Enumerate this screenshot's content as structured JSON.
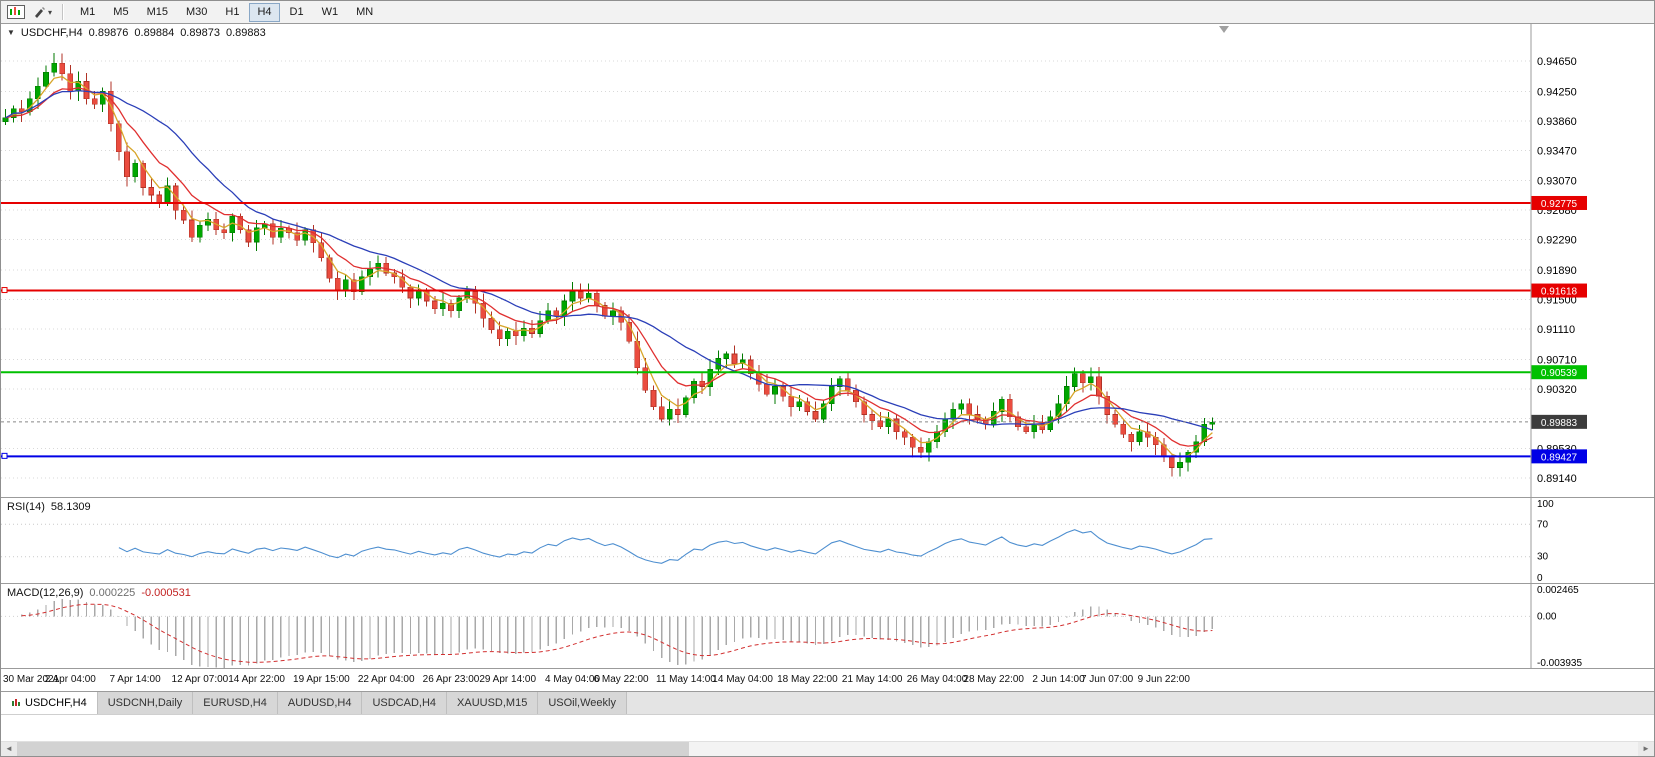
{
  "toolbar": {
    "timeframes": [
      "M1",
      "M5",
      "M15",
      "M30",
      "H1",
      "H4",
      "D1",
      "W1",
      "MN"
    ],
    "active_timeframe": "H4",
    "dropdown_caret": "▾"
  },
  "tabs": {
    "items": [
      "USDCHF,H4",
      "USDCNH,Daily",
      "EURUSD,H4",
      "AUDUSD,H4",
      "USDCAD,H4",
      "XAUUSD,M15",
      "USOil,Weekly"
    ],
    "active": "USDCHF,H4"
  },
  "scrollbar": {
    "left_arrow": "◄",
    "right_arrow": "►"
  },
  "chart_data": {
    "type": "candlestick",
    "header": {
      "marker": "▼",
      "symbol_timeframe": "USDCHF,H4",
      "open": "0.89876",
      "high": "0.89884",
      "low": "0.89873",
      "close": "0.89883"
    },
    "price_range": {
      "min": 0.8889,
      "max": 0.9514
    },
    "price_axis": [
      {
        "label": "0.94650",
        "value": 0.9465
      },
      {
        "label": "0.94250",
        "value": 0.9425
      },
      {
        "label": "0.93860",
        "value": 0.9386
      },
      {
        "label": "0.93470",
        "value": 0.9347
      },
      {
        "label": "0.93070",
        "value": 0.9307
      },
      {
        "label": "0.92680",
        "value": 0.9268
      },
      {
        "label": "0.92290",
        "value": 0.9229
      },
      {
        "label": "0.91890",
        "value": 0.9189
      },
      {
        "label": "0.91500",
        "value": 0.915
      },
      {
        "label": "0.91110",
        "value": 0.9111
      },
      {
        "label": "0.90710",
        "value": 0.9071
      },
      {
        "label": "0.90320",
        "value": 0.9032
      },
      {
        "label": "0.89930",
        "value": 0.8993
      },
      {
        "label": "0.89530",
        "value": 0.8953
      },
      {
        "label": "0.89140",
        "value": 0.8914
      }
    ],
    "time_axis": [
      {
        "label": "30 Mar 2021",
        "index": 0
      },
      {
        "label": "2 Apr 04:00",
        "index": 8
      },
      {
        "label": "7 Apr 14:00",
        "index": 16
      },
      {
        "label": "12 Apr 07:00",
        "index": 24
      },
      {
        "label": "14 Apr 22:00",
        "index": 31
      },
      {
        "label": "19 Apr 15:00",
        "index": 39
      },
      {
        "label": "22 Apr 04:00",
        "index": 47
      },
      {
        "label": "26 Apr 23:00",
        "index": 55
      },
      {
        "label": "29 Apr 14:00",
        "index": 62
      },
      {
        "label": "4 May 04:00",
        "index": 70
      },
      {
        "label": "6 May 22:00",
        "index": 76
      },
      {
        "label": "11 May 14:00",
        "index": 84
      },
      {
        "label": "14 May 04:00",
        "index": 91
      },
      {
        "label": "18 May 22:00",
        "index": 99
      },
      {
        "label": "21 May 14:00",
        "index": 107
      },
      {
        "label": "26 May 04:00",
        "index": 115
      },
      {
        "label": "28 May 22:00",
        "index": 122
      },
      {
        "label": "2 Jun 14:00",
        "index": 130
      },
      {
        "label": "7 Jun 07:00",
        "index": 136
      },
      {
        "label": "9 Jun 22:00",
        "index": 143
      }
    ],
    "candles": {
      "first_open": 0.9385,
      "closes": [
        0.939,
        0.9402,
        0.9398,
        0.9415,
        0.9432,
        0.945,
        0.9462,
        0.9448,
        0.9425,
        0.9438,
        0.9415,
        0.9408,
        0.9425,
        0.9382,
        0.9345,
        0.9312,
        0.933,
        0.9298,
        0.9288,
        0.9278,
        0.93,
        0.9268,
        0.9255,
        0.9232,
        0.9248,
        0.9256,
        0.9242,
        0.9238,
        0.926,
        0.9242,
        0.9226,
        0.9245,
        0.925,
        0.9232,
        0.9244,
        0.9238,
        0.9228,
        0.9242,
        0.9225,
        0.9205,
        0.9178,
        0.9162,
        0.9176,
        0.916,
        0.918,
        0.919,
        0.9198,
        0.9185,
        0.918,
        0.9166,
        0.9152,
        0.9162,
        0.9148,
        0.9138,
        0.9145,
        0.9135,
        0.9152,
        0.916,
        0.9145,
        0.9125,
        0.911,
        0.9098,
        0.9108,
        0.9102,
        0.9112,
        0.9105,
        0.9122,
        0.9135,
        0.9128,
        0.9148,
        0.916,
        0.9152,
        0.9158,
        0.9142,
        0.9128,
        0.9135,
        0.912,
        0.9095,
        0.906,
        0.903,
        0.9008,
        0.8992,
        0.9005,
        0.8998,
        0.902,
        0.9042,
        0.9035,
        0.9058,
        0.9072,
        0.9078,
        0.9065,
        0.907,
        0.9052,
        0.9038,
        0.9025,
        0.9035,
        0.9022,
        0.9008,
        0.9015,
        0.9002,
        0.8992,
        0.9012,
        0.9035,
        0.9045,
        0.903,
        0.9015,
        0.8998,
        0.899,
        0.8982,
        0.8992,
        0.8975,
        0.8968,
        0.8955,
        0.8948,
        0.8962,
        0.8975,
        0.8992,
        0.9005,
        0.9012,
        0.8998,
        0.8992,
        0.8985,
        0.9002,
        0.9018,
        0.8995,
        0.8982,
        0.8975,
        0.8985,
        0.8978,
        0.8995,
        0.9012,
        0.9035,
        0.9052,
        0.904,
        0.9048,
        0.9022,
        0.8998,
        0.8985,
        0.8972,
        0.8962,
        0.8975,
        0.8968,
        0.8958,
        0.8942,
        0.8928,
        0.8935,
        0.8948,
        0.8962,
        0.8985,
        0.8988
      ]
    },
    "moving_averages": [
      {
        "name": "fast",
        "type": "ema",
        "period": 4,
        "color": "#D8A62A"
      },
      {
        "name": "medium",
        "type": "ema",
        "period": 9,
        "color": "#E03030"
      },
      {
        "name": "slow",
        "type": "sma",
        "period": 17,
        "color": "#2B3FB8"
      }
    ],
    "hlines": [
      {
        "label": "0.92775",
        "value": 0.92775,
        "color": "#E60000",
        "handles": false
      },
      {
        "label": "0.91618",
        "value": 0.91618,
        "color": "#E60000",
        "handles": true
      },
      {
        "label": "0.90539",
        "value": 0.90539,
        "color": "#00C000",
        "handles": false
      },
      {
        "label": "0.89427",
        "value": 0.89427,
        "color": "#0000E6",
        "handles": true
      }
    ],
    "current_price": {
      "label": "0.89883",
      "value": 0.89883,
      "tag_color": "#3C3C3C"
    },
    "colors": {
      "background": "#FFFFFF",
      "grid": "#D9D9D9",
      "bull": "#00A600",
      "bull_dark": "#007A00",
      "bear": "#EA4C3F",
      "bear_dark": "#B03226",
      "axis_text": "#000000",
      "panel_border": "#9B9B9B"
    },
    "indicators": {
      "rsi": {
        "title": "RSI(14)",
        "value": "58.1309",
        "period": 14,
        "color": "#4E8FD0",
        "levels": [
          {
            "label": "100",
            "value": 100
          },
          {
            "label": "70",
            "value": 70
          },
          {
            "label": "30",
            "value": 30
          },
          {
            "label": "0",
            "value": 0
          }
        ]
      },
      "macd": {
        "title": "MACD(12,26,9)",
        "main_value": "0.000225",
        "signal_value": "-0.000531",
        "fast": 12,
        "slow": 26,
        "signal": 9,
        "histogram_color": "#A9A9A9",
        "signal_color": "#D23030",
        "axis_labels": [
          {
            "label": "0.002465",
            "value": 0.002465
          },
          {
            "label": "0.00",
            "value": 0
          },
          {
            "label": "-0.003935",
            "value": -0.003935
          }
        ]
      }
    }
  }
}
